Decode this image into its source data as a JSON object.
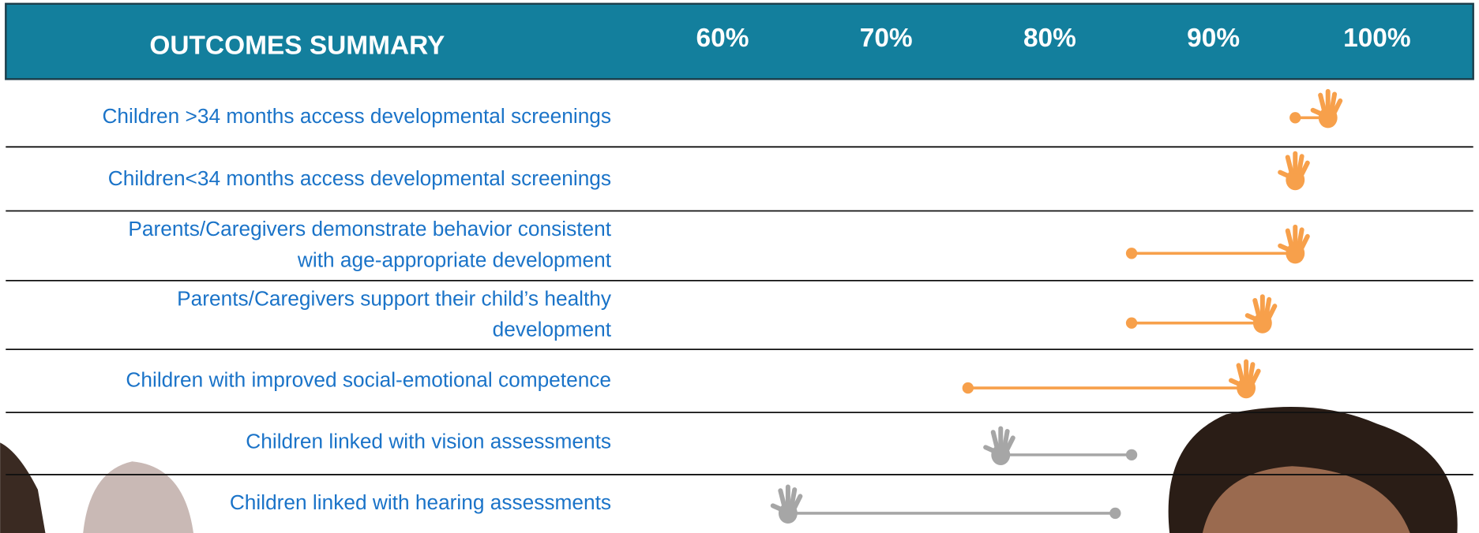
{
  "chart_data": {
    "type": "dumbbell",
    "title": "OUTCOMES SUMMARY",
    "categories": [
      [
        "Children >34 months access developmental screenings"
      ],
      [
        "Children<34 months access developmental screenings"
      ],
      [
        "Parents/Caregivers demonstrate behavior consistent",
        "with age-appropriate development"
      ],
      [
        "Parents/Caregivers support their child’s healthy",
        "development"
      ],
      [
        "Children with improved social-emotional competence"
      ],
      [
        "Children linked with vision assessments"
      ],
      [
        "Children linked with hearing assessments"
      ]
    ],
    "start_values": [
      95,
      null,
      85,
      85,
      75,
      85,
      84
    ],
    "end_values": [
      97,
      95,
      95,
      93,
      92,
      77,
      64
    ],
    "colors": [
      "#f7a04b",
      "#f7a04b",
      "#f7a04b",
      "#f7a04b",
      "#f7a04b",
      "#a6a6a6",
      "#a6a6a6"
    ],
    "xlim": [
      60,
      100
    ],
    "xticks": [
      {
        "value": 60,
        "label": "60%"
      },
      {
        "value": 70,
        "label": "70%"
      },
      {
        "value": 80,
        "label": "80%"
      },
      {
        "value": 90,
        "label": "90%"
      },
      {
        "value": 100,
        "label": "100%"
      }
    ]
  }
}
